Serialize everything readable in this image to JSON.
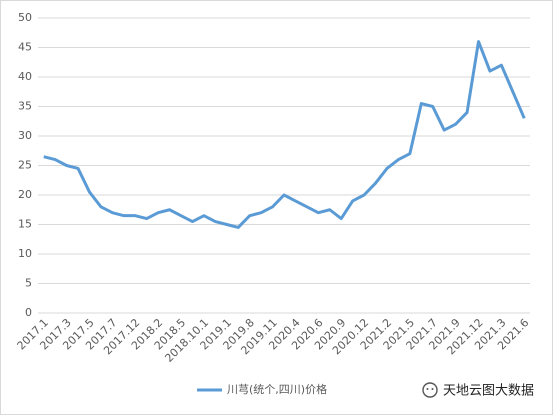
{
  "chart_data": {
    "type": "line",
    "categories": [
      "2017.1",
      null,
      "2017.3",
      null,
      "2017.5",
      null,
      "2017.7",
      null,
      "2017.12",
      null,
      "2018.2",
      null,
      "2018.5",
      null,
      "2018.10.1",
      null,
      "2019.1",
      null,
      "2019.8",
      null,
      "2019.11",
      null,
      "2020.4",
      null,
      "2020.6",
      null,
      "2020.9",
      null,
      "2020.12",
      null,
      "2021.2",
      null,
      "2021.5",
      null,
      "2021.7",
      null,
      "2021.9",
      null,
      "2021.12",
      null,
      "2021.3",
      null,
      "2021.6"
    ],
    "series": [
      {
        "name": "川芎(统个,四川)价格",
        "color": "#5b9bd5",
        "values": [
          26.5,
          26,
          25,
          24.5,
          20.5,
          18,
          17,
          16.5,
          16.5,
          16,
          17,
          17.5,
          16.5,
          15.5,
          16.5,
          15.5,
          15,
          14.5,
          16.5,
          17,
          18,
          20,
          19,
          18,
          17,
          17.5,
          16,
          19,
          20,
          22,
          24.5,
          26,
          27,
          35.5,
          35,
          31,
          32,
          34,
          46,
          41,
          42,
          37.5,
          33
        ]
      }
    ],
    "ylim": [
      0,
      50
    ],
    "yticks": [
      0,
      5,
      10,
      15,
      20,
      25,
      30,
      35,
      40,
      45,
      50
    ],
    "grid": true,
    "legend": "bottom",
    "watermark": "天地云图大数据"
  }
}
